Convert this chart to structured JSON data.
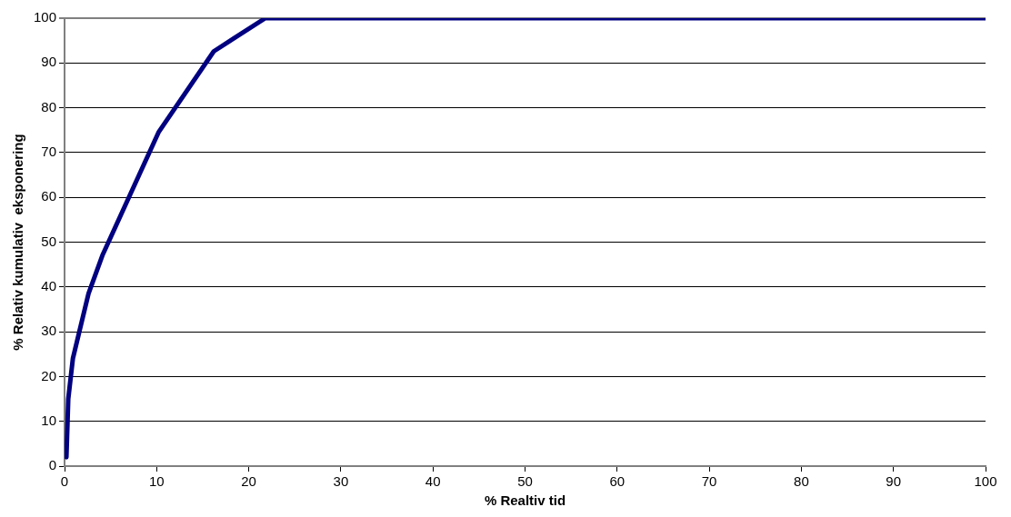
{
  "chart_data": {
    "type": "line",
    "xlabel": "% Realtiv tid",
    "ylabel": "% Relativ kumulativ  eksponering",
    "x": [
      0.2,
      0.4,
      0.9,
      1.6,
      2.6,
      4.1,
      10.2,
      16.2,
      21.8,
      100
    ],
    "series": [
      {
        "color": "#000080",
        "values": [
          2,
          15,
          24,
          30,
          38.5,
          47,
          74.5,
          92.6,
          100,
          100
        ]
      }
    ],
    "xlim": [
      0,
      100
    ],
    "xticks": [
      0,
      10,
      20,
      30,
      40,
      50,
      60,
      70,
      80,
      90,
      100
    ],
    "ylim": [
      0,
      100
    ],
    "yticks": [
      0,
      10,
      20,
      30,
      40,
      50,
      60,
      70,
      80,
      90,
      100
    ],
    "grid": "y",
    "legend": false,
    "marker": "none",
    "line_style": "solid"
  }
}
